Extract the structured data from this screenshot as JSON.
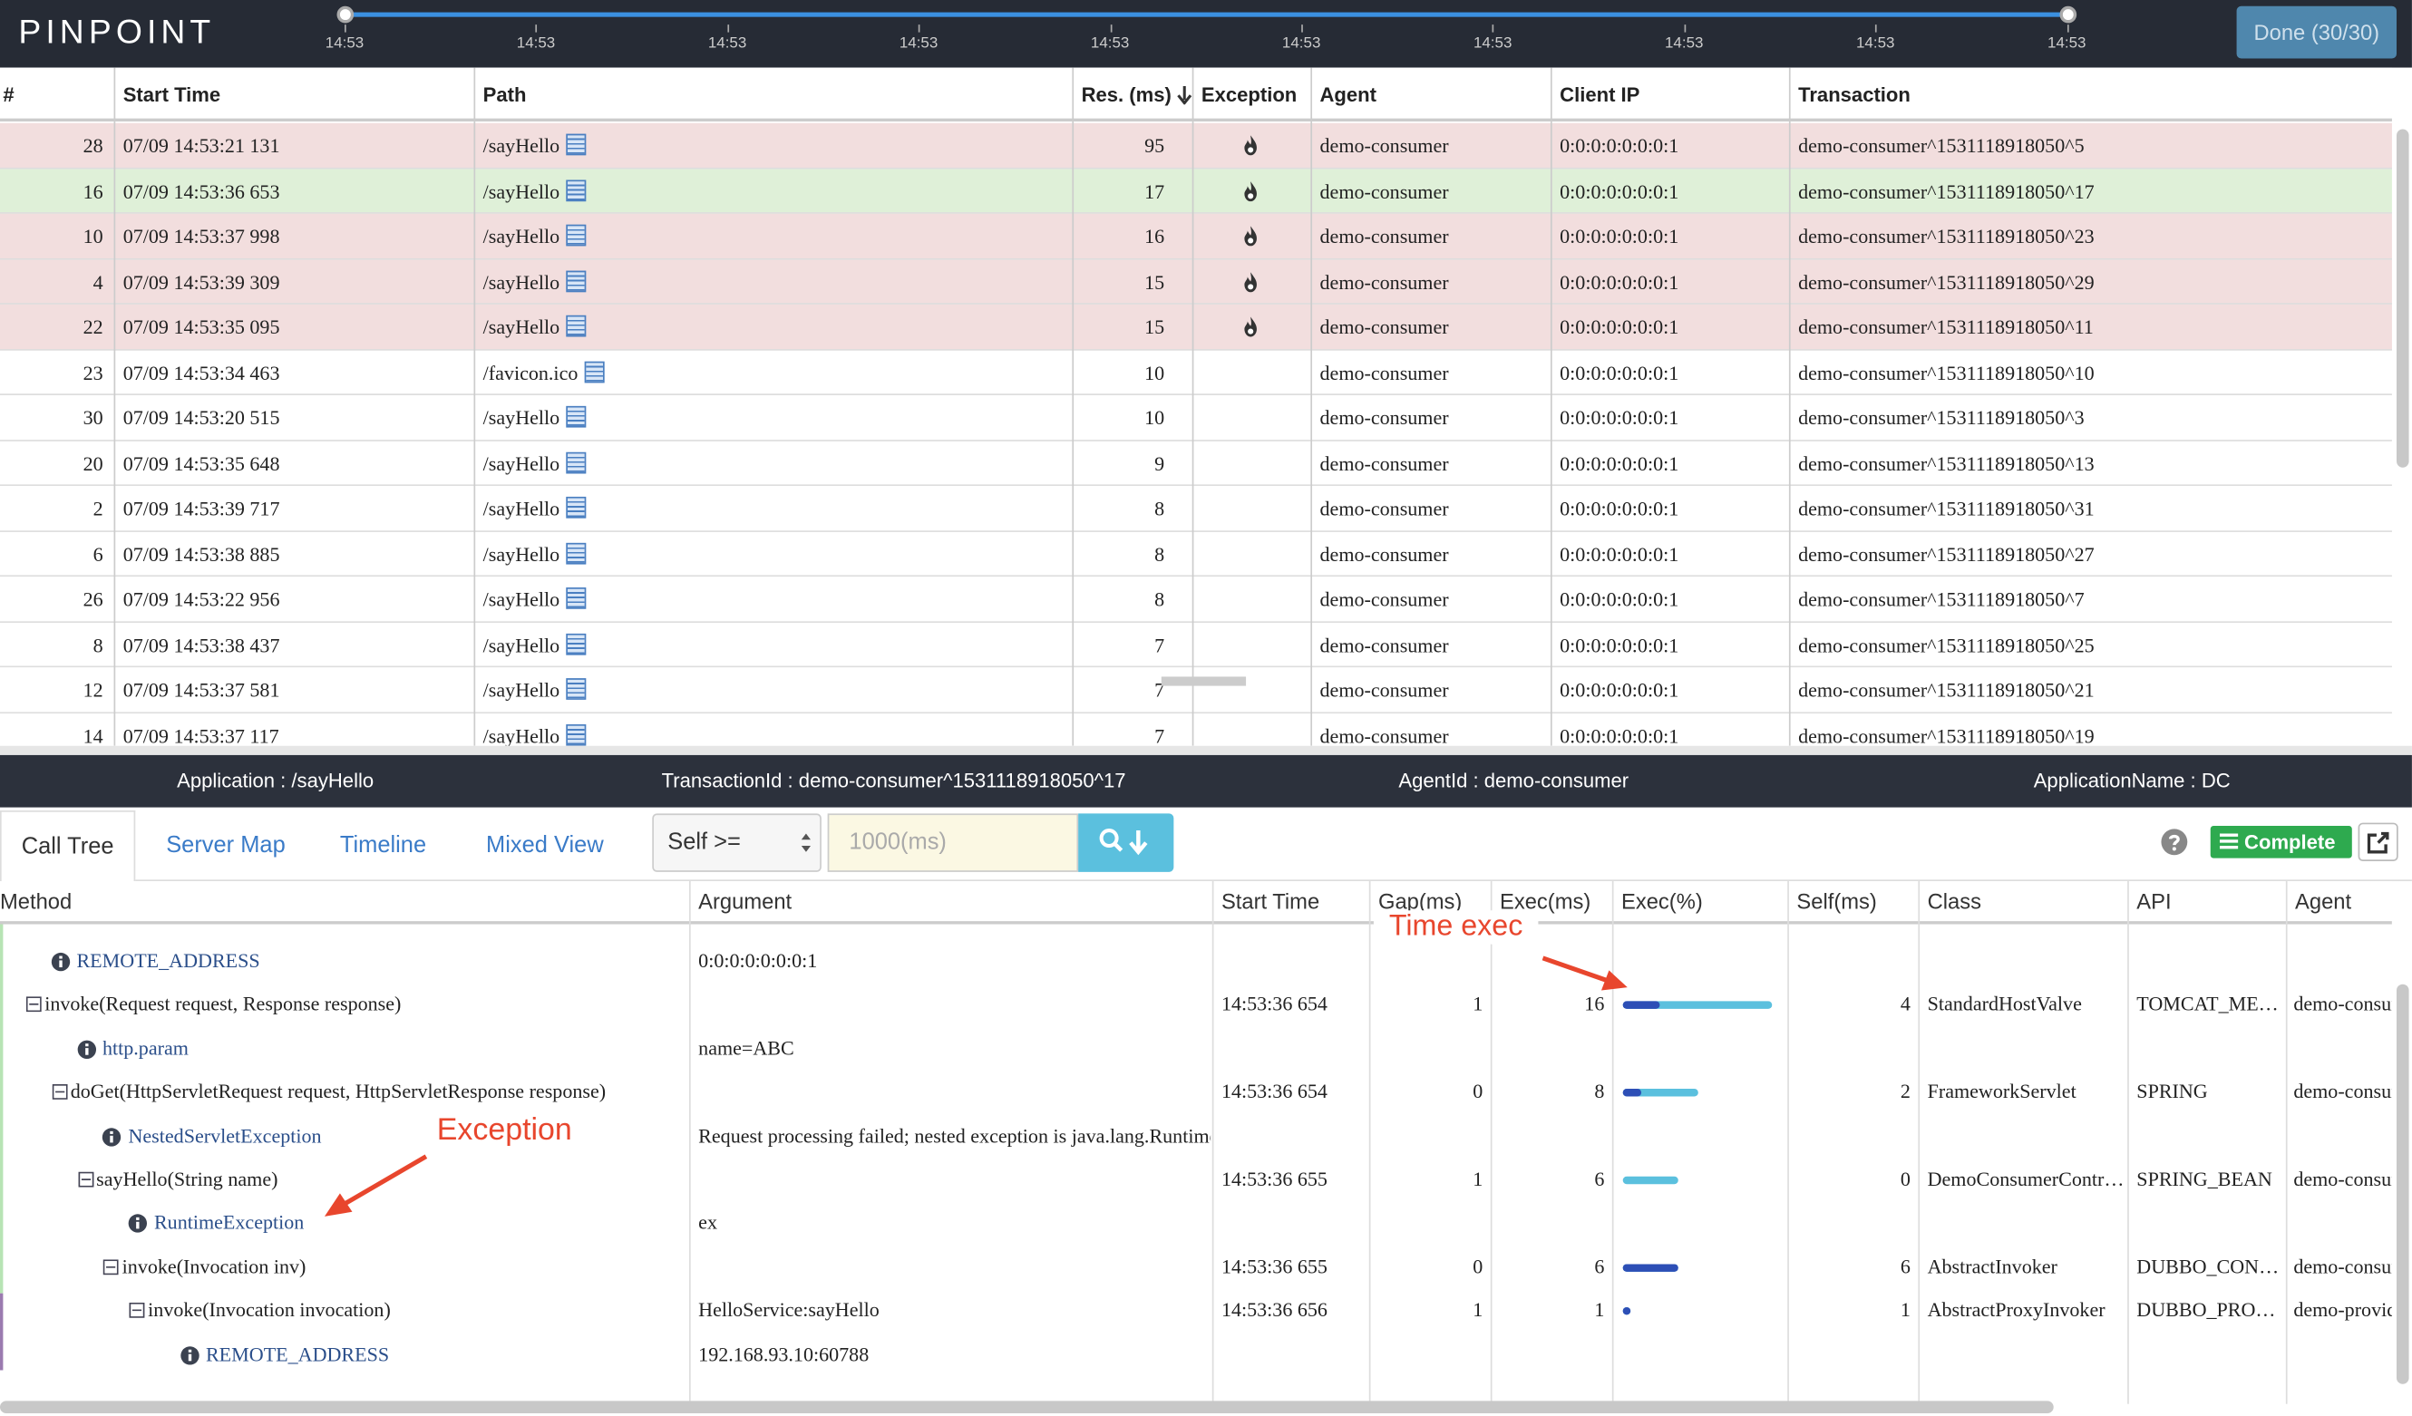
{
  "header": {
    "logo": "PINPOINT",
    "timeline_ticks": [
      "14:53",
      "14:53",
      "14:53",
      "14:53",
      "14:53",
      "14:53",
      "14:53",
      "14:53",
      "14:53",
      "14:53"
    ],
    "done_button": "Done (30/30)"
  },
  "transactions": {
    "columns": [
      "#",
      "Start Time",
      "Path",
      "Res. (ms)",
      "Exception",
      "Agent",
      "Client IP",
      "Transaction"
    ],
    "selected_row": 1,
    "rows": [
      {
        "cells": [
          28,
          "07/09 14:53:21 131",
          "/sayHello",
          95,
          "demo-consumer",
          "0:0:0:0:0:0:0:1",
          "demo-consumer^1531118918050^5"
        ],
        "exception": true
      },
      {
        "cells": [
          16,
          "07/09 14:53:36 653",
          "/sayHello",
          17,
          "demo-consumer",
          "0:0:0:0:0:0:0:1",
          "demo-consumer^1531118918050^17"
        ],
        "exception": true
      },
      {
        "cells": [
          10,
          "07/09 14:53:37 998",
          "/sayHello",
          16,
          "demo-consumer",
          "0:0:0:0:0:0:0:1",
          "demo-consumer^1531118918050^23"
        ],
        "exception": true
      },
      {
        "cells": [
          4,
          "07/09 14:53:39 309",
          "/sayHello",
          15,
          "demo-consumer",
          "0:0:0:0:0:0:0:1",
          "demo-consumer^1531118918050^29"
        ],
        "exception": true
      },
      {
        "cells": [
          22,
          "07/09 14:53:35 095",
          "/sayHello",
          15,
          "demo-consumer",
          "0:0:0:0:0:0:0:1",
          "demo-consumer^1531118918050^11"
        ],
        "exception": true
      },
      {
        "cells": [
          23,
          "07/09 14:53:34 463",
          "/favicon.ico",
          10,
          "demo-consumer",
          "0:0:0:0:0:0:0:1",
          "demo-consumer^1531118918050^10"
        ],
        "exception": false
      },
      {
        "cells": [
          30,
          "07/09 14:53:20 515",
          "/sayHello",
          10,
          "demo-consumer",
          "0:0:0:0:0:0:0:1",
          "demo-consumer^1531118918050^3"
        ],
        "exception": false
      },
      {
        "cells": [
          20,
          "07/09 14:53:35 648",
          "/sayHello",
          9,
          "demo-consumer",
          "0:0:0:0:0:0:0:1",
          "demo-consumer^1531118918050^13"
        ],
        "exception": false
      },
      {
        "cells": [
          2,
          "07/09 14:53:39 717",
          "/sayHello",
          8,
          "demo-consumer",
          "0:0:0:0:0:0:0:1",
          "demo-consumer^1531118918050^31"
        ],
        "exception": false
      },
      {
        "cells": [
          6,
          "07/09 14:53:38 885",
          "/sayHello",
          8,
          "demo-consumer",
          "0:0:0:0:0:0:0:1",
          "demo-consumer^1531118918050^27"
        ],
        "exception": false
      },
      {
        "cells": [
          26,
          "07/09 14:53:22 956",
          "/sayHello",
          8,
          "demo-consumer",
          "0:0:0:0:0:0:0:1",
          "demo-consumer^1531118918050^7"
        ],
        "exception": false
      },
      {
        "cells": [
          8,
          "07/09 14:53:38 437",
          "/sayHello",
          7,
          "demo-consumer",
          "0:0:0:0:0:0:0:1",
          "demo-consumer^1531118918050^25"
        ],
        "exception": false
      },
      {
        "cells": [
          12,
          "07/09 14:53:37 581",
          "/sayHello",
          7,
          "demo-consumer",
          "0:0:0:0:0:0:0:1",
          "demo-consumer^1531118918050^21"
        ],
        "exception": false
      },
      {
        "cells": [
          14,
          "07/09 14:53:37 117",
          "/sayHello",
          7,
          "demo-consumer",
          "0:0:0:0:0:0:0:1",
          "demo-consumer^1531118918050^19"
        ],
        "exception": false
      }
    ]
  },
  "info_bar": [
    "Application : /sayHello",
    "TransactionId : demo-consumer^1531118918050^17",
    "AgentId : demo-consumer",
    "ApplicationName : DC"
  ],
  "call_tree": {
    "tabs": [
      "Call Tree",
      "Server Map",
      "Timeline",
      "Mixed View"
    ],
    "active_tab": 0,
    "filter_select": "Self >=",
    "filter_placeholder": "1000(ms)",
    "complete_button": "Complete",
    "columns": [
      "Method",
      "Argument",
      "Start Time",
      "Gap(ms)",
      "Exec(ms)",
      "Exec(%)",
      "Self(ms)",
      "Class",
      "API",
      "Agent"
    ],
    "rows": [
      {
        "level": 1,
        "kind": "info",
        "method": "REMOTE_ADDRESS",
        "argument": "0:0:0:0:0:0:0:1"
      },
      {
        "level": 0,
        "kind": "method",
        "method": "invoke(Request request, Response response)",
        "start": "14:53:36 654",
        "gap": 1,
        "exec": 16,
        "exec_pct": [
          100,
          25
        ],
        "self": 4,
        "class": "StandardHostValve",
        "api": "TOMCAT_ME…",
        "agent": "demo-consumer"
      },
      {
        "level": 2,
        "kind": "info",
        "method": "http.param",
        "argument": "name=ABC"
      },
      {
        "level": 1,
        "kind": "method",
        "method": "doGet(HttpServletRequest request, HttpServletResponse response)",
        "start": "14:53:36 654",
        "gap": 0,
        "exec": 8,
        "exec_pct": [
          50,
          12
        ],
        "self": 2,
        "class": "FrameworkServlet",
        "api": "SPRING",
        "agent": "demo-consumer"
      },
      {
        "level": 3,
        "kind": "info",
        "method": "NestedServletException",
        "argument": "Request processing failed; nested exception is java.lang.RuntimeException"
      },
      {
        "level": 2,
        "kind": "method",
        "method": "sayHello(String name)",
        "start": "14:53:36 655",
        "gap": 1,
        "exec": 6,
        "exec_pct": [
          37.5,
          0
        ],
        "self": 0,
        "class": "DemoConsumerContr…",
        "api": "SPRING_BEAN",
        "agent": "demo-consumer"
      },
      {
        "level": 4,
        "kind": "info",
        "method": "RuntimeException",
        "argument": "ex"
      },
      {
        "level": 3,
        "kind": "method",
        "method": "invoke(Invocation inv)",
        "start": "14:53:36 655",
        "gap": 0,
        "exec": 6,
        "exec_pct": [
          37.5,
          37.5
        ],
        "self": 6,
        "class": "AbstractInvoker",
        "api": "DUBBO_CON…",
        "agent": "demo-consumer"
      },
      {
        "level": 4,
        "kind": "method",
        "method": "invoke(Invocation invocation)",
        "argument": "HelloService:sayHello",
        "start": "14:53:36 656",
        "gap": 1,
        "exec": 1,
        "exec_pct": [
          3,
          3
        ],
        "self": 1,
        "class": "AbstractProxyInvoker",
        "api": "DUBBO_PRO…",
        "agent": "demo-provider"
      },
      {
        "level": 6,
        "kind": "info",
        "method": "REMOTE_ADDRESS",
        "argument": "192.168.93.10:60788"
      }
    ]
  },
  "annotations": {
    "time_exec": "Time exec",
    "exception": "Exception"
  }
}
